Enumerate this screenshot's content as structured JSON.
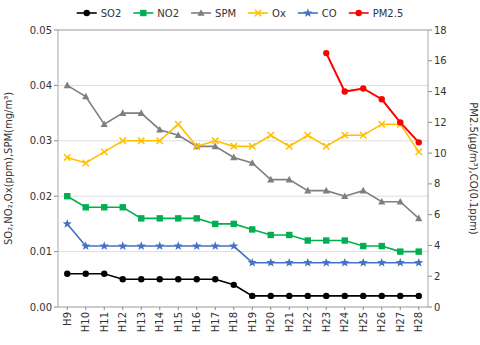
{
  "chart_data": {
    "type": "line",
    "categories": [
      "H9",
      "H10",
      "H11",
      "H12",
      "H13",
      "H14",
      "H15",
      "H16",
      "H17",
      "H18",
      "H19",
      "H20",
      "H21",
      "H22",
      "H23",
      "H24",
      "H25",
      "H26",
      "H27",
      "H28"
    ],
    "series": [
      {
        "name": "SO2",
        "color": "#000000",
        "marker": "circle",
        "axis": "y",
        "values": [
          0.006,
          0.006,
          0.006,
          0.005,
          0.005,
          0.005,
          0.005,
          0.005,
          0.005,
          0.004,
          0.002,
          0.002,
          0.002,
          0.002,
          0.002,
          0.002,
          0.002,
          0.002,
          0.002,
          0.002
        ]
      },
      {
        "name": "NO2",
        "color": "#00b050",
        "marker": "square",
        "axis": "y",
        "values": [
          0.02,
          0.018,
          0.018,
          0.018,
          0.016,
          0.016,
          0.016,
          0.016,
          0.015,
          0.015,
          0.014,
          0.013,
          0.013,
          0.012,
          0.012,
          0.012,
          0.011,
          0.011,
          0.01,
          0.01
        ]
      },
      {
        "name": "SPM",
        "color": "#7f7f7f",
        "marker": "triangle",
        "axis": "y",
        "values": [
          0.04,
          0.038,
          0.033,
          0.035,
          0.035,
          0.032,
          0.031,
          0.029,
          0.029,
          0.027,
          0.026,
          0.023,
          0.023,
          0.021,
          0.021,
          0.02,
          0.021,
          0.019,
          0.019,
          0.016
        ]
      },
      {
        "name": "Ox",
        "color": "#ffc000",
        "marker": "x",
        "axis": "y",
        "values": [
          0.027,
          0.026,
          0.028,
          0.03,
          0.03,
          0.03,
          0.033,
          0.029,
          0.03,
          0.029,
          0.029,
          0.031,
          0.029,
          0.031,
          0.029,
          0.031,
          0.031,
          0.033,
          0.033,
          0.028
        ]
      },
      {
        "name": "CO",
        "color": "#4472c4",
        "marker": "star",
        "axis": "y",
        "values": [
          0.015,
          0.011,
          0.011,
          0.011,
          0.011,
          0.011,
          0.011,
          0.011,
          0.011,
          0.011,
          0.008,
          0.008,
          0.008,
          0.008,
          0.008,
          0.008,
          0.008,
          0.008,
          0.008,
          0.008
        ]
      },
      {
        "name": "PM2.5",
        "color": "#ff0000",
        "marker": "circle",
        "axis": "y2",
        "values": [
          null,
          null,
          null,
          null,
          null,
          null,
          null,
          null,
          null,
          null,
          null,
          null,
          null,
          null,
          16.5,
          14.0,
          14.2,
          13.5,
          12.0,
          10.7
        ]
      }
    ],
    "ylabel": "SO₂,NO₂,Ox(ppm),SPM(mg/m³)",
    "y2label": "PM2.5(μg/m³),CO(0.1ppm)",
    "ylim": [
      0,
      0.05
    ],
    "yticks": [
      {
        "value": 0,
        "label": "0.00"
      },
      0.01,
      0.02,
      0.03,
      0.04,
      0.05
    ],
    "y2lim": [
      0,
      18
    ],
    "y2ticks": [
      0,
      2,
      4,
      6,
      8,
      10,
      12,
      14,
      16,
      18
    ],
    "grid": true,
    "legend": "top"
  }
}
